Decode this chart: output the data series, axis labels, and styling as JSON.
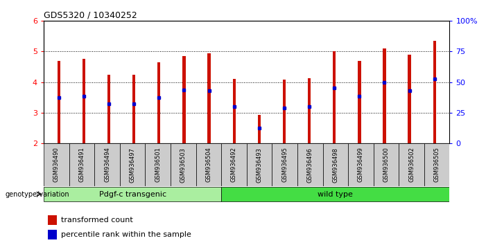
{
  "title": "GDS5320 / 10340252",
  "samples": [
    "GSM936490",
    "GSM936491",
    "GSM936494",
    "GSM936497",
    "GSM936501",
    "GSM936503",
    "GSM936504",
    "GSM936492",
    "GSM936493",
    "GSM936495",
    "GSM936496",
    "GSM936498",
    "GSM936499",
    "GSM936500",
    "GSM936502",
    "GSM936505"
  ],
  "transformed_count": [
    4.7,
    4.75,
    4.25,
    4.25,
    4.65,
    4.85,
    4.95,
    4.1,
    2.93,
    4.08,
    4.12,
    5.0,
    4.7,
    5.1,
    4.9,
    5.35
  ],
  "percentile_rank": [
    3.5,
    3.55,
    3.28,
    3.28,
    3.5,
    3.75,
    3.72,
    3.2,
    2.5,
    3.15,
    3.2,
    3.82,
    3.55,
    3.98,
    3.72,
    4.1
  ],
  "ylim": [
    2,
    6
  ],
  "yticks": [
    2,
    3,
    4,
    5,
    6
  ],
  "right_yticks": [
    0,
    25,
    50,
    75,
    100
  ],
  "right_ytick_labels": [
    "0",
    "25",
    "50",
    "75",
    "100%"
  ],
  "bar_color": "#CC1100",
  "percentile_color": "#0000CC",
  "n_transgenic": 7,
  "n_wildtype": 9,
  "group1_label": "Pdgf-c transgenic",
  "group2_label": "wild type",
  "group1_color": "#AAEEA0",
  "group2_color": "#44DD44",
  "genotype_label": "genotype/variation",
  "legend_bar_label": "transformed count",
  "legend_pct_label": "percentile rank within the sample",
  "bar_width": 0.12,
  "xtick_bg": "#CCCCCC"
}
